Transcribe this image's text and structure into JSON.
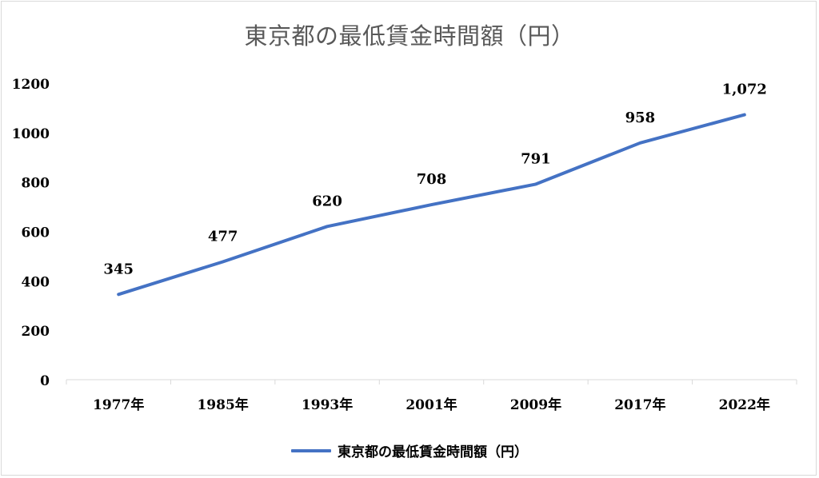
{
  "chart_data": {
    "type": "line",
    "title": "東京都の最低賃金時間額（円）",
    "categories": [
      "1977年",
      "1985年",
      "1993年",
      "2001年",
      "2009年",
      "2017年",
      "2022年"
    ],
    "series": [
      {
        "name": "東京都の最低賃金時間額（円）",
        "values": [
          345,
          477,
          620,
          708,
          791,
          958,
          1072
        ],
        "data_labels": [
          "345",
          "477",
          "620",
          "708",
          "791",
          "958",
          "1,072"
        ],
        "color": "#4472c4"
      }
    ],
    "ylim": [
      0,
      1200
    ],
    "yticks": [
      "0",
      "200",
      "400",
      "600",
      "800",
      "1000",
      "1200"
    ],
    "grid": false,
    "legend_position": "bottom"
  }
}
